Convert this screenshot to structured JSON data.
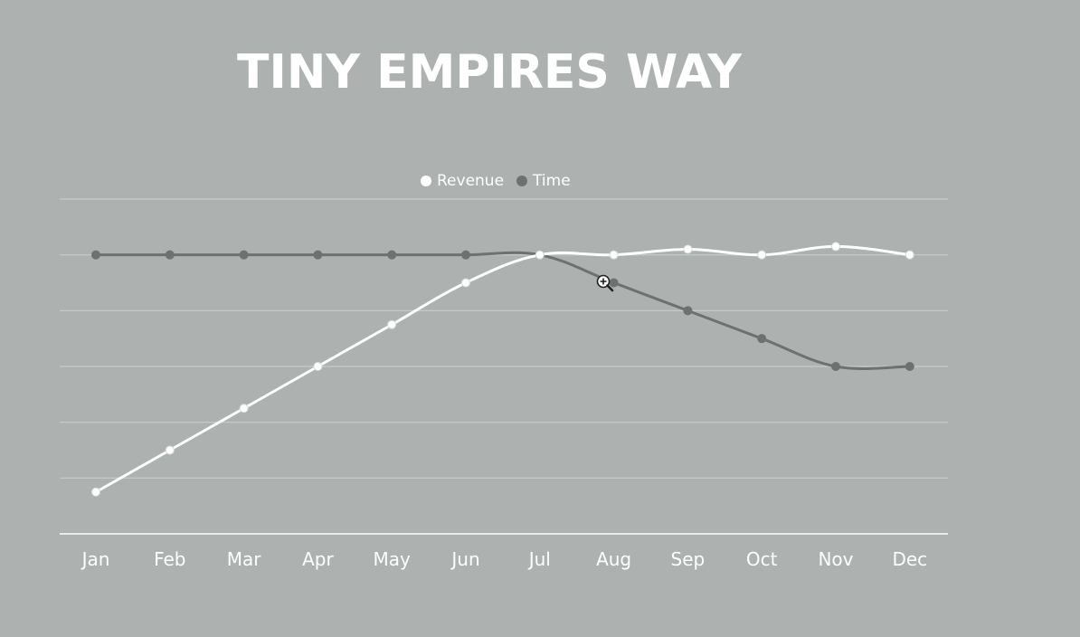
{
  "colors": {
    "background": "#adb1b0",
    "revenue": "#ffffff",
    "time": "#6f7170",
    "grid": "#c7cbca"
  },
  "chart_data": {
    "type": "line",
    "title": "TINY EMPIRES WAY",
    "categories": [
      "Jan",
      "Feb",
      "Mar",
      "Apr",
      "May",
      "Jun",
      "Jul",
      "Aug",
      "Sep",
      "Oct",
      "Nov",
      "Dec"
    ],
    "series": [
      {
        "name": "Revenue",
        "values": [
          0.75,
          1.5,
          2.25,
          3.0,
          3.75,
          4.5,
          5.0,
          5.0,
          5.1,
          5.0,
          5.15,
          5.0
        ]
      },
      {
        "name": "Time",
        "values": [
          5.0,
          5.0,
          5.0,
          5.0,
          5.0,
          5.0,
          5.0,
          4.5,
          4.0,
          3.5,
          3.0,
          3.0
        ]
      }
    ],
    "ylim": [
      0,
      6
    ],
    "grid": true,
    "legend_position": "top-center",
    "xlabel": "",
    "ylabel": ""
  },
  "cursor_icon": "zoom-in-cursor-icon"
}
